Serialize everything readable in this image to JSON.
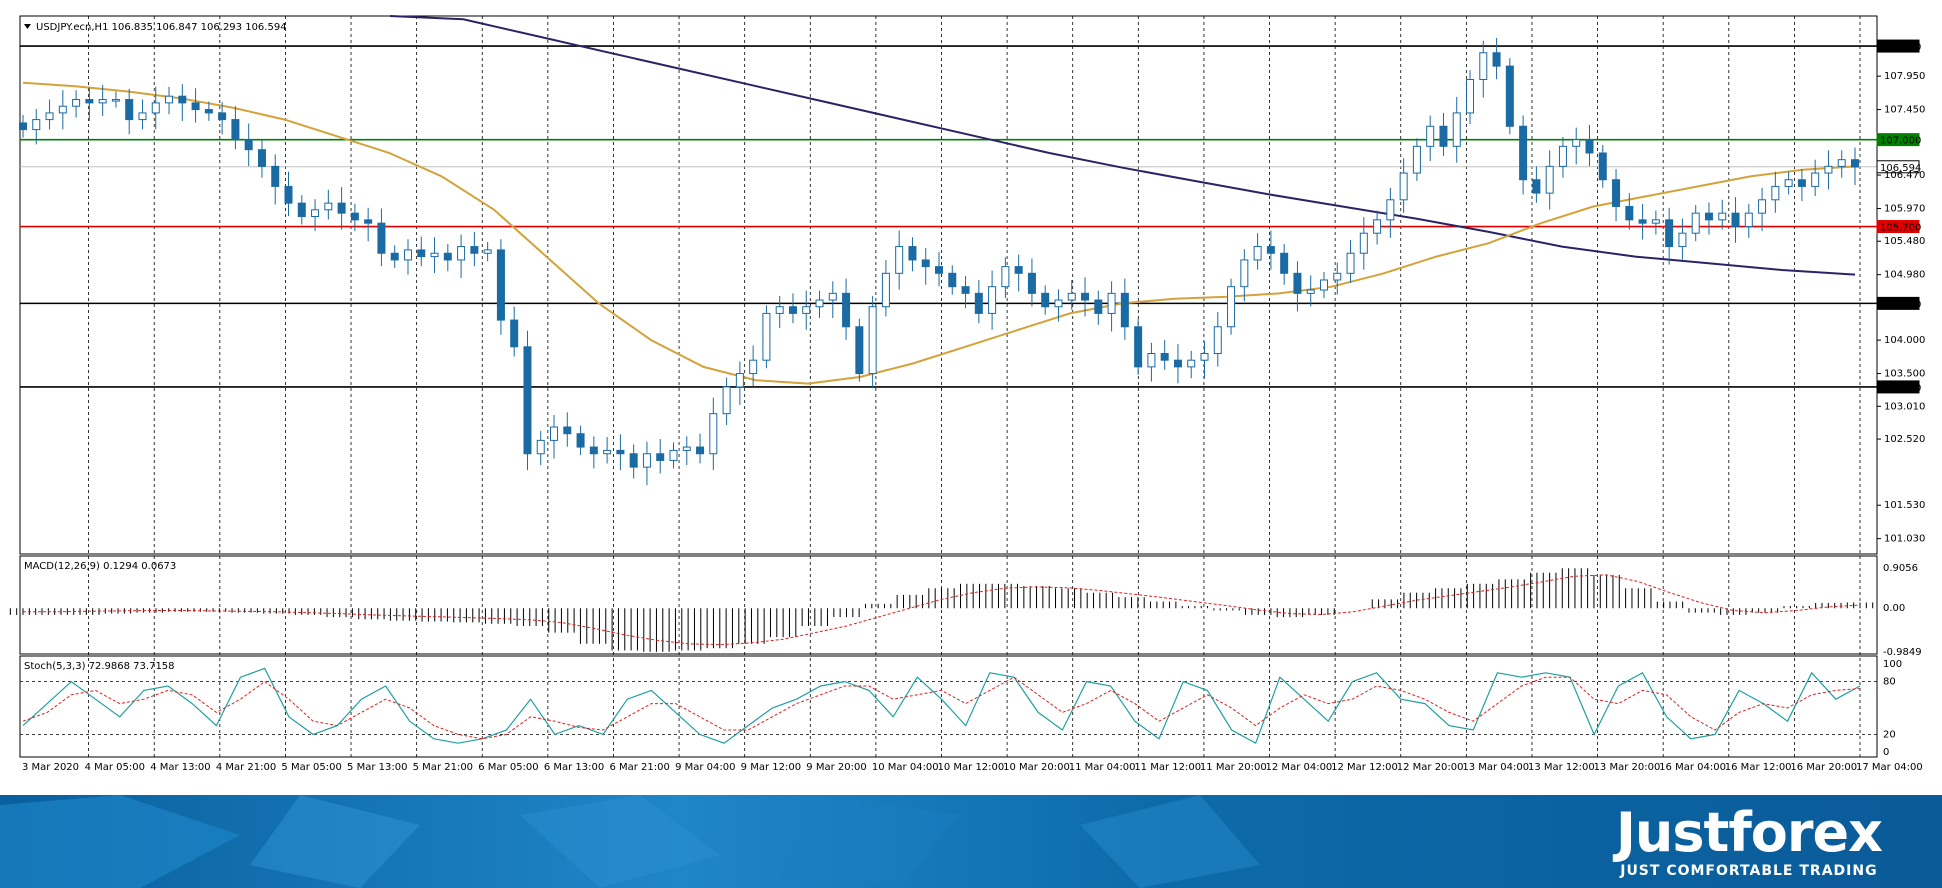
{
  "chart_data": {
    "type": "candlestick",
    "symbol_header": "USDJPY.ecn,H1  106.835 106.847 106.293 106.594",
    "price_axis": {
      "ylim": [
        100.8,
        108.85
      ],
      "ticks": [
        "107.950",
        "107.450",
        "106.470",
        "105.970",
        "105.480",
        "104.980",
        "104.000",
        "103.500",
        "103.010",
        "102.520",
        "101.530",
        "101.030"
      ]
    },
    "levels": [
      {
        "value": 108.4,
        "label": "108.400",
        "color": "#000000"
      },
      {
        "value": 107.0,
        "label": "107.000",
        "color": "#008000"
      },
      {
        "value": 106.594,
        "label": "106.594",
        "color": "#c0c0c0"
      },
      {
        "value": 105.7,
        "label": "105.700",
        "color": "#e00000"
      },
      {
        "value": 104.55,
        "label": "104.550",
        "color": "#000000"
      },
      {
        "value": 103.3,
        "label": "103.300",
        "color": "#000000"
      }
    ],
    "time_labels": [
      "3 Mar 2020",
      "4 Mar 05:00",
      "4 Mar 13:00",
      "4 Mar 21:00",
      "5 Mar 05:00",
      "5 Mar 13:00",
      "5 Mar 21:00",
      "6 Mar 05:00",
      "6 Mar 13:00",
      "6 Mar 21:00",
      "9 Mar 04:00",
      "9 Mar 12:00",
      "9 Mar 20:00",
      "10 Mar 04:00",
      "10 Mar 12:00",
      "10 Mar 20:00",
      "11 Mar 04:00",
      "11 Mar 12:00",
      "11 Mar 20:00",
      "12 Mar 04:00",
      "12 Mar 12:00",
      "12 Mar 20:00",
      "13 Mar 04:00",
      "13 Mar 12:00",
      "13 Mar 20:00",
      "16 Mar 04:00",
      "16 Mar 12:00",
      "16 Mar 20:00",
      "17 Mar 04:00"
    ],
    "close_path": [
      107.15,
      107.3,
      107.4,
      107.5,
      107.6,
      107.55,
      107.6,
      107.6,
      107.3,
      107.4,
      107.55,
      107.65,
      107.55,
      107.45,
      107.4,
      107.3,
      107.0,
      106.85,
      106.6,
      106.3,
      106.05,
      105.85,
      105.95,
      106.05,
      105.9,
      105.8,
      105.75,
      105.3,
      105.2,
      105.35,
      105.25,
      105.3,
      105.2,
      105.4,
      105.3,
      105.35,
      104.3,
      103.9,
      102.3,
      102.5,
      102.7,
      102.6,
      102.4,
      102.3,
      102.35,
      102.3,
      102.1,
      102.3,
      102.2,
      102.35,
      102.4,
      102.3,
      102.9,
      103.3,
      103.5,
      103.7,
      104.4,
      104.5,
      104.4,
      104.5,
      104.6,
      104.7,
      104.2,
      103.5,
      104.5,
      105.0,
      105.4,
      105.2,
      105.1,
      105.0,
      104.8,
      104.7,
      104.4,
      104.8,
      105.1,
      105.0,
      104.7,
      104.5,
      104.6,
      104.7,
      104.6,
      104.4,
      104.7,
      104.2,
      103.6,
      103.8,
      103.7,
      103.6,
      103.7,
      103.8,
      104.2,
      104.8,
      105.2,
      105.4,
      105.3,
      105.0,
      104.7,
      104.75,
      104.9,
      105.0,
      105.3,
      105.6,
      105.8,
      106.1,
      106.5,
      106.9,
      107.2,
      106.9,
      107.4,
      107.9,
      108.3,
      108.1,
      107.2,
      106.4,
      106.2,
      106.6,
      106.9,
      107.0,
      106.8,
      106.4,
      106.0,
      105.8,
      105.75,
      105.8,
      105.4,
      105.6,
      105.9,
      105.8,
      105.9,
      105.7,
      105.9,
      106.1,
      106.3,
      106.4,
      106.3,
      106.5,
      106.6,
      106.7,
      106.59
    ],
    "ma_fast_path": [
      107.85,
      107.8,
      107.72,
      107.62,
      107.48,
      107.3,
      107.05,
      106.8,
      106.45,
      105.95,
      105.25,
      104.55,
      104.0,
      103.6,
      103.4,
      103.35,
      103.45,
      103.65,
      103.9,
      104.15,
      104.4,
      104.55,
      104.62,
      104.65,
      104.7,
      104.8,
      105.0,
      105.25,
      105.45,
      105.75,
      106.0,
      106.15,
      106.3,
      106.45,
      106.55,
      106.6
    ],
    "ma_slow_path": [
      109.0,
      108.8,
      108.55,
      108.3,
      108.05,
      107.8,
      107.55,
      107.3,
      107.05,
      106.8,
      106.58,
      106.38,
      106.18,
      106.0,
      105.82,
      105.62,
      105.4,
      105.25,
      105.15,
      105.05,
      104.98
    ],
    "macd": {
      "label": "MACD(12,26,9) 0.1294 0.0673",
      "ticks": [
        "0.9056",
        "0.00",
        "-0.9849"
      ],
      "histogram": [
        -0.15,
        -0.15,
        -0.15,
        -0.12,
        -0.1,
        -0.08,
        -0.08,
        -0.1,
        -0.12,
        -0.15,
        -0.2,
        -0.25,
        -0.28,
        -0.3,
        -0.32,
        -0.35,
        -0.4,
        -0.55,
        -0.8,
        -0.95,
        -0.98,
        -0.95,
        -0.9,
        -0.8,
        -0.65,
        -0.4,
        -0.2,
        0.1,
        0.3,
        0.45,
        0.55,
        0.55,
        0.5,
        0.45,
        0.35,
        0.25,
        0.15,
        0.05,
        -0.05,
        -0.15,
        -0.2,
        -0.15,
        0.0,
        0.2,
        0.35,
        0.45,
        0.55,
        0.65,
        0.8,
        0.9,
        0.75,
        0.45,
        0.15,
        -0.1,
        -0.15,
        -0.1,
        0.05,
        0.12,
        0.13
      ],
      "signal": [
        -0.08,
        -0.08,
        -0.07,
        -0.06,
        -0.05,
        -0.05,
        -0.06,
        -0.07,
        -0.08,
        -0.1,
        -0.12,
        -0.15,
        -0.17,
        -0.19,
        -0.21,
        -0.23,
        -0.26,
        -0.32,
        -0.45,
        -0.6,
        -0.72,
        -0.8,
        -0.82,
        -0.78,
        -0.7,
        -0.55,
        -0.4,
        -0.2,
        0.0,
        0.2,
        0.35,
        0.45,
        0.48,
        0.46,
        0.4,
        0.32,
        0.24,
        0.15,
        0.06,
        -0.04,
        -0.12,
        -0.14,
        -0.08,
        0.05,
        0.18,
        0.28,
        0.38,
        0.48,
        0.6,
        0.72,
        0.75,
        0.6,
        0.35,
        0.12,
        -0.05,
        -0.1,
        -0.05,
        0.03,
        0.07
      ]
    },
    "stoch": {
      "label": "Stoch(5,3,3) 72.9868 73.7158",
      "ticks": [
        "100",
        "80",
        "20",
        "0"
      ],
      "k": [
        30,
        55,
        80,
        60,
        40,
        70,
        75,
        55,
        30,
        85,
        95,
        40,
        20,
        30,
        60,
        75,
        35,
        15,
        10,
        15,
        25,
        60,
        20,
        30,
        20,
        60,
        70,
        45,
        20,
        10,
        30,
        50,
        60,
        75,
        80,
        70,
        40,
        85,
        60,
        30,
        90,
        85,
        45,
        25,
        80,
        75,
        35,
        15,
        80,
        70,
        25,
        10,
        85,
        60,
        35,
        80,
        90,
        60,
        55,
        30,
        25,
        90,
        85,
        90,
        85,
        20,
        75,
        90,
        40,
        15,
        20,
        70,
        55,
        35,
        90,
        60,
        75
      ],
      "d": [
        35,
        45,
        65,
        70,
        55,
        60,
        70,
        65,
        45,
        60,
        80,
        60,
        35,
        30,
        45,
        60,
        50,
        30,
        20,
        15,
        20,
        40,
        35,
        28,
        25,
        40,
        55,
        55,
        40,
        25,
        25,
        40,
        55,
        65,
        75,
        75,
        60,
        65,
        70,
        55,
        70,
        85,
        65,
        45,
        55,
        70,
        55,
        35,
        50,
        65,
        50,
        30,
        50,
        65,
        55,
        60,
        75,
        70,
        60,
        45,
        35,
        55,
        75,
        85,
        85,
        60,
        55,
        70,
        65,
        40,
        25,
        45,
        55,
        50,
        65,
        70,
        72
      ]
    }
  },
  "brand": {
    "name": "Justforex",
    "tagline": "JUST COMFORTABLE TRADING"
  }
}
